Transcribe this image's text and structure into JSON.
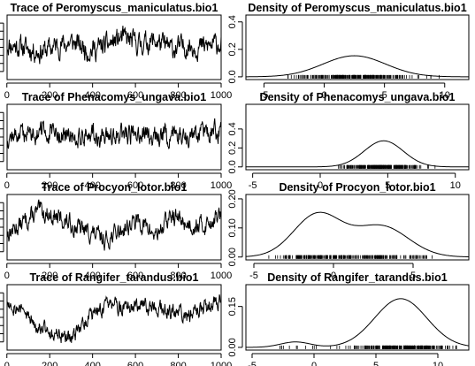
{
  "chart_data": [
    {
      "type": "line",
      "title": "Trace of Peromyscus_maniculatus.bio1",
      "x_ticks": [
        "0",
        "200",
        "400",
        "600",
        "800",
        "1000"
      ],
      "x_range": [
        1,
        1000
      ],
      "y_ticks": [],
      "y_range": [
        -2,
        2
      ],
      "trend": [
        0.2,
        0.0,
        -0.3,
        0.1,
        0.3,
        -0.2,
        0.1,
        0.6,
        0.2,
        0.4,
        -0.1,
        0.1,
        0.0,
        0.3
      ],
      "noise": 0.55,
      "seed": 11
    },
    {
      "type": "line",
      "title": "Density of Peromyscus_maniculatus.bio1",
      "x_ticks": [
        "-5",
        "0",
        "5",
        "10"
      ],
      "x_range": [
        -6.5,
        12
      ],
      "y_ticks": [
        "0.0",
        "0.2",
        "0.4"
      ],
      "y_range": [
        -0.02,
        0.45
      ],
      "components": [
        {
          "weight": 1,
          "mean": 2.5,
          "sd": 2.6
        }
      ],
      "rug_range": [
        -3,
        10
      ],
      "seed": 21
    },
    {
      "type": "line",
      "title": "Trace of Phenacomys_ungava.bio1",
      "x_ticks": [
        "0",
        "200",
        "400",
        "600",
        "800",
        "1000"
      ],
      "x_range": [
        1,
        1000
      ],
      "y_ticks": [],
      "y_range": [
        -2,
        2
      ],
      "trend": [
        0.0,
        0.2,
        0.3,
        0.1,
        0.0,
        0.2,
        -0.1,
        0.1,
        0.3,
        0.0,
        0.2,
        0.1,
        0.2,
        0.4
      ],
      "noise": 0.5,
      "seed": 12
    },
    {
      "type": "line",
      "title": "Density of Phenacomys_ungava.bio1",
      "x_ticks": [
        "-5",
        "0",
        "5",
        "10"
      ],
      "x_range": [
        -5.5,
        11
      ],
      "y_ticks": [
        "0.0",
        "0.2",
        "0.4"
      ],
      "y_range": [
        -0.03,
        0.66
      ],
      "components": [
        {
          "weight": 1,
          "mean": 4.7,
          "sd": 1.45
        }
      ],
      "rug_range": [
        -1.5,
        8.5
      ],
      "seed": 22
    },
    {
      "type": "line",
      "title": "Trace of Procyon_lotor.bio1",
      "x_ticks": [
        "0",
        "200",
        "400",
        "600",
        "800",
        "1000"
      ],
      "x_range": [
        1,
        1000
      ],
      "y_ticks": [],
      "y_range": [
        -2,
        2
      ],
      "trend": [
        -0.4,
        0.3,
        1.0,
        0.6,
        0.1,
        -0.3,
        -0.8,
        -0.1,
        0.4,
        -0.5,
        0.7,
        0.2,
        0.1,
        0.8
      ],
      "noise": 0.45,
      "seed": 13
    },
    {
      "type": "line",
      "title": "Density of Procyon_lotor.bio1",
      "x_ticks": [
        "-5",
        "0",
        "5",
        "10"
      ],
      "x_range": [
        -5.5,
        8.5
      ],
      "y_ticks": [
        "0.00",
        "0.10",
        "0.20"
      ],
      "y_range": [
        -0.01,
        0.215
      ],
      "components": [
        {
          "weight": 0.55,
          "mean": -1.0,
          "sd": 1.5
        },
        {
          "weight": 0.45,
          "mean": 3.0,
          "sd": 1.7
        }
      ],
      "rug_range": [
        -4.5,
        6.5
      ],
      "seed": 23
    },
    {
      "type": "line",
      "title": "Trace of Rangifer_tarandus.bio1",
      "x_ticks": [
        "0",
        "200",
        "400",
        "600",
        "800",
        "1000"
      ],
      "x_range": [
        1,
        1000
      ],
      "y_ticks": [],
      "y_range": [
        -2,
        2
      ],
      "trend": [
        1.0,
        0.3,
        -0.5,
        -1.1,
        -1.3,
        0.2,
        0.6,
        0.7,
        0.5,
        0.8,
        0.3,
        0.0,
        0.6,
        1.1
      ],
      "noise": 0.4,
      "seed": 14
    },
    {
      "type": "line",
      "title": "Density of Rangifer_tarandus.bio1",
      "x_ticks": [
        "-5",
        "0",
        "5",
        "10"
      ],
      "x_range": [
        -5.5,
        12.5
      ],
      "y_ticks": [
        "0.00",
        "0.15"
      ],
      "y_range": [
        -0.01,
        0.23
      ],
      "components": [
        {
          "weight": 0.06,
          "mean": -1.5,
          "sd": 1.2
        },
        {
          "weight": 0.94,
          "mean": 7.0,
          "sd": 2.1
        }
      ],
      "rug_range": [
        -3.5,
        11.5
      ],
      "seed": 24
    }
  ]
}
